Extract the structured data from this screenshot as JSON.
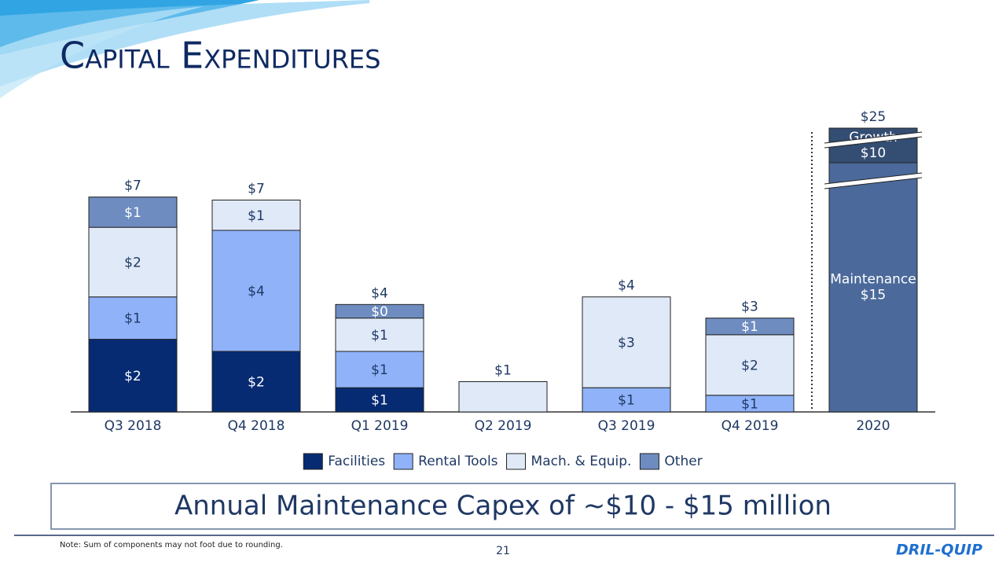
{
  "slide": {
    "title": "Capital Expenditures",
    "callout": "Annual Maintenance Capex of ~$10 - $15 million",
    "note": "Note: Sum of components may not foot due to rounding.",
    "page_number": "21",
    "logo": "DRIL-QUIP"
  },
  "chart_data": [
    {
      "type": "stacked_bar",
      "categories": [
        "Q3 2018",
        "Q4 2018",
        "Q1 2019",
        "Q2 2019",
        "Q3 2019",
        "Q4 2019"
      ],
      "series": [
        {
          "name": "Facilities",
          "color": "#062b73",
          "label_color": "#ffffff",
          "values": [
            2.4,
            2.0,
            0.8,
            null,
            null,
            null
          ],
          "value_labels": [
            "$2",
            "$2",
            "$1",
            null,
            null,
            null
          ]
        },
        {
          "name": "Rental Tools",
          "color": "#8fb2f9",
          "label_color": "#1f3864",
          "values": [
            1.4,
            4.0,
            1.2,
            null,
            0.8,
            0.55
          ],
          "value_labels": [
            "$1",
            "$4",
            "$1",
            null,
            "$1",
            "$1"
          ]
        },
        {
          "name": "Mach. & Equip.",
          "color": "#dfe9f8",
          "label_color": "#1f3864",
          "values": [
            2.3,
            1.0,
            1.1,
            1.0,
            3.0,
            2.0
          ],
          "value_labels": [
            "$2",
            "$1",
            "$1",
            null,
            "$3",
            "$2"
          ]
        },
        {
          "name": "Other",
          "color": "#6e8cc0",
          "label_color": "#ffffff",
          "values": [
            1.0,
            null,
            0.45,
            null,
            null,
            0.55
          ],
          "value_labels": [
            "$1",
            null,
            "$0",
            null,
            null,
            "$1"
          ]
        }
      ],
      "totals": [
        7.1,
        7.0,
        3.55,
        1.0,
        3.8,
        3.1
      ],
      "total_labels": [
        "$7",
        "$7",
        "$4",
        "$1",
        "$4",
        "$3"
      ],
      "legend": "bottom"
    },
    {
      "type": "broken_bar",
      "categories": [
        "2020"
      ],
      "series": [
        {
          "name": "Maintenance",
          "color": "#4b6a9b",
          "label_color": "#ffffff",
          "values": [
            15
          ],
          "value_labels": [
            "$15"
          ]
        },
        {
          "name": "Growth",
          "color": "#344d73",
          "label_color": "#ffffff",
          "values": [
            10
          ],
          "value_labels": [
            "$10"
          ]
        }
      ],
      "totals": [
        25
      ],
      "total_labels": [
        "$25"
      ]
    }
  ]
}
